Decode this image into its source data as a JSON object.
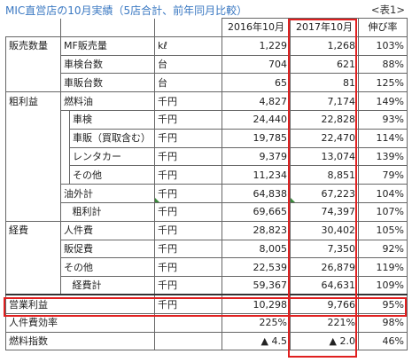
{
  "header": {
    "title": "MIC直営店の10月実績（5店合計、前年同月比較）",
    "ref": "<表1>"
  },
  "table": {
    "columns": [
      "2016年10月",
      "2017年10月",
      "伸び率"
    ],
    "rows": [
      {
        "cat": "販売数量",
        "sub": "",
        "item": "MF販売量",
        "unit": "kℓ",
        "v2016": "1,229",
        "v2017": "1,268",
        "rate": "103%"
      },
      {
        "cat": "",
        "sub": "",
        "item": "車検台数",
        "unit": "台",
        "v2016": "704",
        "v2017": "621",
        "rate": "88%"
      },
      {
        "cat": "",
        "sub": "",
        "item": "車販台数",
        "unit": "台",
        "v2016": "65",
        "v2017": "81",
        "rate": "125%"
      },
      {
        "cat": "粗利益",
        "sub": "",
        "item": "燃料油",
        "unit": "千円",
        "v2016": "4,827",
        "v2017": "7,174",
        "rate": "149%"
      },
      {
        "cat": "",
        "sub": "",
        "item": "車検",
        "unit": "千円",
        "v2016": "24,440",
        "v2017": "22,828",
        "rate": "93%"
      },
      {
        "cat": "",
        "sub": "",
        "item": "車販（買取含む）",
        "unit": "千円",
        "v2016": "19,785",
        "v2017": "22,470",
        "rate": "114%"
      },
      {
        "cat": "",
        "sub": "",
        "item": "レンタカー",
        "unit": "千円",
        "v2016": "9,379",
        "v2017": "13,074",
        "rate": "139%"
      },
      {
        "cat": "",
        "sub": "",
        "item": "その他",
        "unit": "千円",
        "v2016": "11,234",
        "v2017": "8,851",
        "rate": "79%"
      },
      {
        "cat": "",
        "sub": "",
        "item": "油外計",
        "unit": "千円",
        "v2016": "64,838",
        "v2017": "67,223",
        "rate": "104%"
      },
      {
        "cat": "",
        "sub": "",
        "item": "粗利計",
        "unit": "千円",
        "v2016": "69,665",
        "v2017": "74,397",
        "rate": "107%"
      },
      {
        "cat": "経費",
        "sub": "",
        "item": "人件費",
        "unit": "千円",
        "v2016": "28,823",
        "v2017": "30,402",
        "rate": "105%"
      },
      {
        "cat": "",
        "sub": "",
        "item": "販促費",
        "unit": "千円",
        "v2016": "8,005",
        "v2017": "7,350",
        "rate": "92%"
      },
      {
        "cat": "",
        "sub": "",
        "item": "その他",
        "unit": "千円",
        "v2016": "22,539",
        "v2017": "26,879",
        "rate": "119%"
      },
      {
        "cat": "",
        "sub": "",
        "item": "経費計",
        "unit": "千円",
        "v2016": "59,367",
        "v2017": "64,631",
        "rate": "109%"
      },
      {
        "cat": "営業利益",
        "sub": "",
        "item": "",
        "unit": "千円",
        "v2016": "10,298",
        "v2017": "9,766",
        "rate": "95%"
      },
      {
        "cat": "人件費効率",
        "sub": "",
        "item": "",
        "unit": "",
        "v2016": "225%",
        "v2017": "221%",
        "rate": "98%"
      },
      {
        "cat": "燃料指数",
        "sub": "",
        "item": "",
        "unit": "",
        "v2016": "▲ 4.5",
        "v2017": "▲ 2.0",
        "rate": "46%"
      }
    ]
  }
}
